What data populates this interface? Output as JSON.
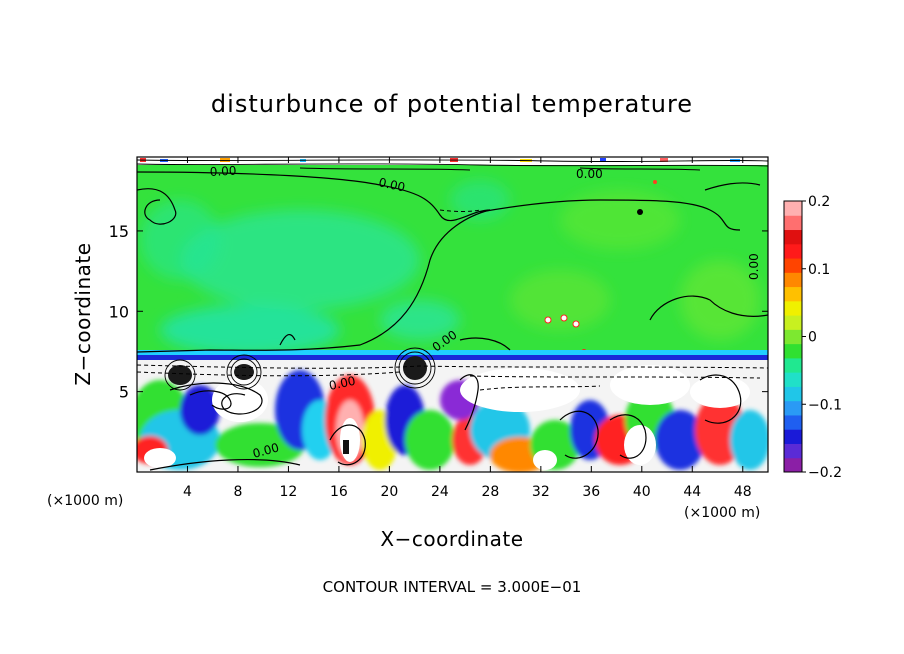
{
  "chart_data": {
    "type": "heatmap",
    "title": "disturbunce of potential temperature",
    "xlabel": "X−coordinate",
    "ylabel": "Z−coordinate",
    "x_unit_label_left": "(×1000 m)",
    "x_unit_label_right": "(×1000 m)",
    "xlim": [
      0,
      50
    ],
    "ylim": [
      0,
      19.6
    ],
    "x_ticks": [
      4,
      8,
      12,
      16,
      20,
      24,
      28,
      32,
      36,
      40,
      44,
      48
    ],
    "x_tick_labels": [
      "4",
      "8",
      "12",
      "16",
      "20",
      "24",
      "28",
      "32",
      "36",
      "40",
      "44",
      "48"
    ],
    "y_ticks": [
      5,
      10,
      15
    ],
    "y_tick_labels": [
      "5",
      "10",
      "15"
    ],
    "colorbar": {
      "min": -0.2,
      "max": 0.2,
      "ticks": [
        0.2,
        0.1,
        0,
        -0.1,
        -0.2
      ],
      "tick_labels": [
        "0.2",
        "0.1",
        "0",
        "−0.1",
        "−0.2"
      ],
      "colors": [
        "#8b1fa6",
        "#5a2bd6",
        "#1a1ad8",
        "#1f5ff0",
        "#2a9af5",
        "#20c6e8",
        "#20e0c8",
        "#20e890",
        "#30e030",
        "#7de830",
        "#c8f020",
        "#f0f000",
        "#ffc000",
        "#ff8800",
        "#ff4400",
        "#ff1a1a",
        "#e01010",
        "#ff6f6f",
        "#ffb0b0"
      ]
    },
    "contour_labels": [
      "0.00",
      "0.00",
      "0.00",
      "0.00",
      "0.00",
      "0.00",
      "0.00"
    ],
    "contour_interval_text": "CONTOUR INTERVAL = 3.000E−01"
  }
}
